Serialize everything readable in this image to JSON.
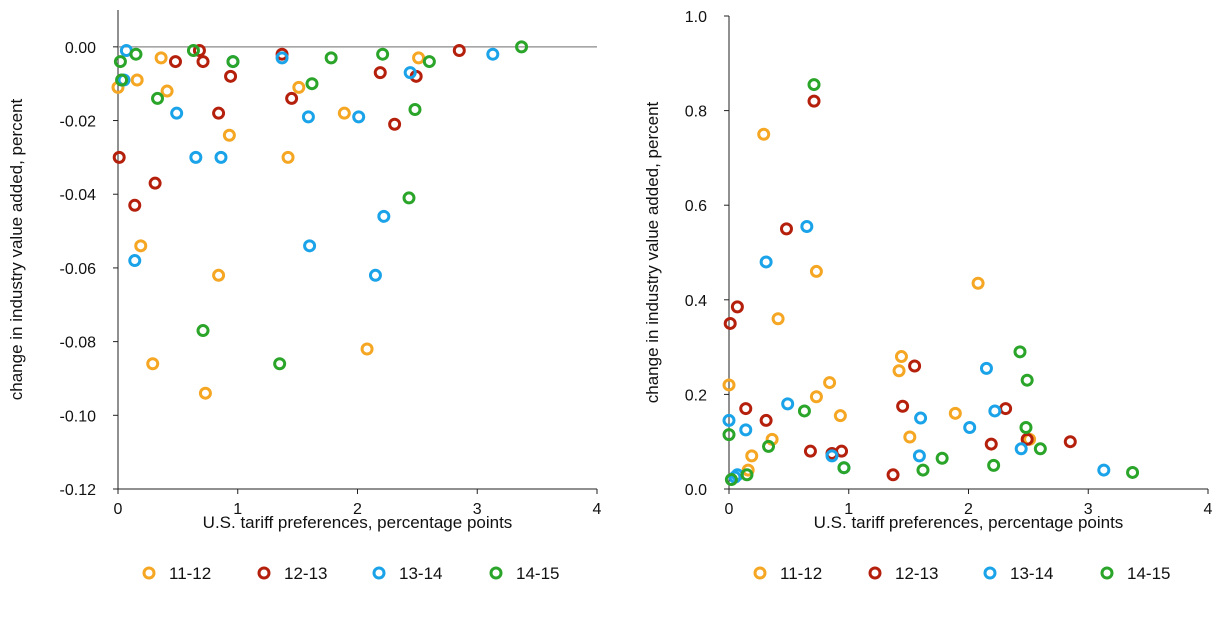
{
  "chart_data": [
    {
      "type": "scatter",
      "xlabel": "U.S. tariff preferences, percentage points",
      "ylabel": "change in industry value added, percent",
      "xlim": [
        0,
        4
      ],
      "ylim": [
        -0.12,
        0.01
      ],
      "xticks": [
        0,
        1,
        2,
        3,
        4
      ],
      "xtick_labels": [
        "0",
        "1",
        "2",
        "3",
        "4"
      ],
      "yticks": [
        0.0,
        -0.02,
        -0.04,
        -0.06,
        -0.08,
        -0.1,
        -0.12
      ],
      "ytick_labels": [
        "0.00",
        "-0.02",
        "-0.04",
        "-0.06",
        "-0.08",
        "-0.10",
        "-0.12"
      ],
      "zero_line": true,
      "grid": false,
      "legend": "bottom",
      "series": [
        {
          "name": "11-12",
          "color": "#f5a623",
          "points": [
            [
              0.0,
              -0.011
            ],
            [
              0.16,
              -0.009
            ],
            [
              0.19,
              -0.054
            ],
            [
              0.29,
              -0.086
            ],
            [
              0.36,
              -0.003
            ],
            [
              0.41,
              -0.012
            ],
            [
              0.73,
              -0.094
            ],
            [
              0.84,
              -0.062
            ],
            [
              0.93,
              -0.024
            ],
            [
              1.42,
              -0.03
            ],
            [
              1.51,
              -0.011
            ],
            [
              1.89,
              -0.018
            ],
            [
              2.08,
              -0.082
            ],
            [
              2.51,
              -0.003
            ]
          ]
        },
        {
          "name": "12-13",
          "color": "#b5200d",
          "points": [
            [
              0.01,
              -0.03
            ],
            [
              0.14,
              -0.043
            ],
            [
              0.31,
              -0.037
            ],
            [
              0.48,
              -0.004
            ],
            [
              0.68,
              -0.001
            ],
            [
              0.71,
              -0.004
            ],
            [
              0.84,
              -0.018
            ],
            [
              0.94,
              -0.008
            ],
            [
              1.37,
              -0.002
            ],
            [
              1.45,
              -0.014
            ],
            [
              2.19,
              -0.007
            ],
            [
              2.31,
              -0.021
            ],
            [
              2.49,
              -0.008
            ],
            [
              2.85,
              -0.001
            ]
          ]
        },
        {
          "name": "13-14",
          "color": "#1aa3e8",
          "points": [
            [
              0.05,
              -0.009
            ],
            [
              0.07,
              -0.001
            ],
            [
              0.14,
              -0.058
            ],
            [
              0.49,
              -0.018
            ],
            [
              0.65,
              -0.03
            ],
            [
              0.86,
              -0.03
            ],
            [
              0.96,
              -0.004
            ],
            [
              1.37,
              -0.003
            ],
            [
              1.59,
              -0.019
            ],
            [
              1.6,
              -0.054
            ],
            [
              2.01,
              -0.019
            ],
            [
              2.15,
              -0.062
            ],
            [
              2.22,
              -0.046
            ],
            [
              2.44,
              -0.007
            ],
            [
              3.13,
              -0.002
            ]
          ]
        },
        {
          "name": "14-15",
          "color": "#2aa52a",
          "points": [
            [
              0.02,
              -0.004
            ],
            [
              0.03,
              -0.009
            ],
            [
              0.15,
              -0.002
            ],
            [
              0.33,
              -0.014
            ],
            [
              0.63,
              -0.001
            ],
            [
              0.71,
              -0.077
            ],
            [
              0.96,
              -0.004
            ],
            [
              1.35,
              -0.086
            ],
            [
              1.62,
              -0.01
            ],
            [
              1.78,
              -0.003
            ],
            [
              2.21,
              -0.002
            ],
            [
              2.43,
              -0.041
            ],
            [
              2.48,
              -0.017
            ],
            [
              2.6,
              -0.004
            ],
            [
              3.37,
              0.0
            ]
          ]
        }
      ]
    },
    {
      "type": "scatter",
      "xlabel": "U.S. tariff preferences, percentage points",
      "ylabel": "change in industry value added, percent",
      "xlim": [
        0,
        4
      ],
      "ylim": [
        0,
        1.0
      ],
      "xticks": [
        0,
        1,
        2,
        3,
        4
      ],
      "xtick_labels": [
        "0",
        "1",
        "2",
        "3",
        "4"
      ],
      "yticks": [
        0.0,
        0.2,
        0.4,
        0.6,
        0.8,
        1.0
      ],
      "ytick_labels": [
        "0.0",
        "0.2",
        "0.4",
        "0.6",
        "0.8",
        "1.0"
      ],
      "zero_line": false,
      "grid": false,
      "legend": "bottom",
      "series": [
        {
          "name": "11-12",
          "color": "#f5a623",
          "points": [
            [
              0.0,
              0.22
            ],
            [
              0.16,
              0.04
            ],
            [
              0.19,
              0.07
            ],
            [
              0.29,
              0.75
            ],
            [
              0.36,
              0.105
            ],
            [
              0.41,
              0.36
            ],
            [
              0.73,
              0.46
            ],
            [
              0.73,
              0.195
            ],
            [
              0.84,
              0.225
            ],
            [
              0.93,
              0.155
            ],
            [
              1.42,
              0.25
            ],
            [
              1.44,
              0.28
            ],
            [
              1.51,
              0.11
            ],
            [
              1.89,
              0.16
            ],
            [
              2.08,
              0.435
            ],
            [
              2.51,
              0.105
            ]
          ]
        },
        {
          "name": "12-13",
          "color": "#b5200d",
          "points": [
            [
              0.01,
              0.35
            ],
            [
              0.07,
              0.385
            ],
            [
              0.14,
              0.17
            ],
            [
              0.31,
              0.145
            ],
            [
              0.48,
              0.55
            ],
            [
              0.68,
              0.08
            ],
            [
              0.71,
              0.82
            ],
            [
              0.86,
              0.075
            ],
            [
              0.94,
              0.08
            ],
            [
              1.37,
              0.03
            ],
            [
              1.45,
              0.175
            ],
            [
              1.55,
              0.26
            ],
            [
              2.19,
              0.095
            ],
            [
              2.31,
              0.17
            ],
            [
              2.49,
              0.105
            ],
            [
              2.85,
              0.1
            ]
          ]
        },
        {
          "name": "13-14",
          "color": "#1aa3e8",
          "points": [
            [
              0.0,
              0.145
            ],
            [
              0.05,
              0.025
            ],
            [
              0.07,
              0.03
            ],
            [
              0.14,
              0.125
            ],
            [
              0.31,
              0.48
            ],
            [
              0.49,
              0.18
            ],
            [
              0.65,
              0.555
            ],
            [
              0.86,
              0.07
            ],
            [
              0.96,
              0.045
            ],
            [
              1.59,
              0.07
            ],
            [
              1.6,
              0.15
            ],
            [
              2.01,
              0.13
            ],
            [
              2.15,
              0.255
            ],
            [
              2.22,
              0.165
            ],
            [
              2.44,
              0.085
            ],
            [
              3.13,
              0.04
            ]
          ]
        },
        {
          "name": "14-15",
          "color": "#2aa52a",
          "points": [
            [
              0.0,
              0.115
            ],
            [
              0.02,
              0.02
            ],
            [
              0.15,
              0.03
            ],
            [
              0.33,
              0.09
            ],
            [
              0.63,
              0.165
            ],
            [
              0.71,
              0.855
            ],
            [
              0.96,
              0.045
            ],
            [
              1.62,
              0.04
            ],
            [
              1.78,
              0.065
            ],
            [
              2.21,
              0.05
            ],
            [
              2.43,
              0.29
            ],
            [
              2.48,
              0.13
            ],
            [
              2.49,
              0.23
            ],
            [
              2.6,
              0.085
            ],
            [
              3.37,
              0.035
            ]
          ]
        }
      ]
    }
  ]
}
